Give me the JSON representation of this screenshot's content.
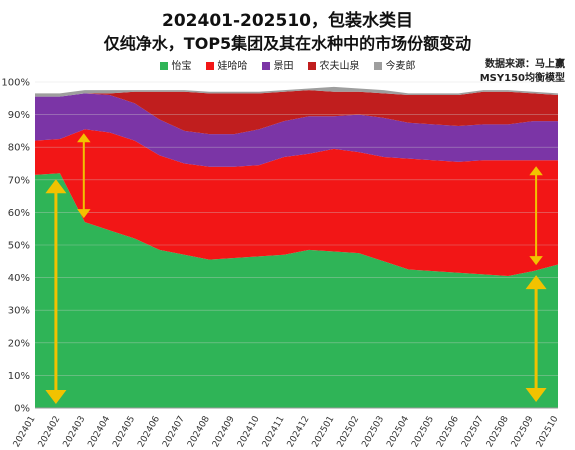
{
  "title": "202401-202510，包装水类目",
  "subtitle": "仅纯净水，TOP5集团及其在水种中的市场份额变动",
  "source_line1": "数据来源：马上赢",
  "source_line2": "MSY150均衡模型",
  "colors": {
    "yibao": "#2fb457",
    "wahaha": "#f21616",
    "jingtian": "#7b35a6",
    "nongfu": "#c01e1e",
    "jinmailang": "#9e9e9e",
    "arrow": "#f2c200"
  },
  "chart_data": {
    "type": "area",
    "stacked": true,
    "x": [
      "202401",
      "202402",
      "202403",
      "202404",
      "202405",
      "202406",
      "202407",
      "202408",
      "202409",
      "202410",
      "202411",
      "202412",
      "202501",
      "202502",
      "202503",
      "202504",
      "202505",
      "202506",
      "202507",
      "202508",
      "202509",
      "202510"
    ],
    "ylim": [
      0,
      100
    ],
    "yticks": [
      "0%",
      "10%",
      "20%",
      "30%",
      "40%",
      "50%",
      "60%",
      "70%",
      "80%",
      "90%",
      "100%"
    ],
    "legend_position": "top",
    "grid": true,
    "series": [
      {
        "name": "怡宝",
        "color_key": "yibao",
        "values": [
          71.5,
          72,
          57,
          54.5,
          52,
          48.5,
          47,
          45.5,
          46,
          46.5,
          47,
          48.5,
          48,
          47.5,
          45,
          42.5,
          42,
          41.5,
          41,
          40.5,
          42,
          44
        ]
      },
      {
        "name": "娃哈哈",
        "color_key": "wahaha",
        "values": [
          10.5,
          10.5,
          28.5,
          30,
          30,
          29,
          28,
          28.5,
          28,
          28,
          30,
          29.5,
          31.5,
          31,
          32,
          34,
          34,
          34,
          35,
          35.5,
          34,
          32
        ]
      },
      {
        "name": "景田",
        "color_key": "jingtian",
        "values": [
          13.5,
          13,
          11,
          11.5,
          11.5,
          11,
          10,
          10,
          10,
          11,
          11,
          11.5,
          10,
          11.5,
          12,
          11,
          11,
          11,
          11,
          11,
          12,
          12
        ]
      },
      {
        "name": "农夫山泉",
        "color_key": "nongfu",
        "values": [
          0,
          0,
          0,
          0.5,
          3.5,
          8.5,
          12,
          12.5,
          12.5,
          11,
          9,
          8,
          7.5,
          7,
          7.5,
          8.5,
          9,
          9.5,
          10,
          10,
          8.5,
          8
        ]
      },
      {
        "name": "今麦郎",
        "color_key": "jinmailang",
        "values": [
          1,
          1,
          1,
          1,
          0.5,
          0.5,
          0.5,
          0.5,
          0.5,
          0.5,
          0.5,
          0.5,
          1.5,
          1,
          1,
          0.5,
          0.5,
          0.5,
          0.5,
          0.5,
          0.5,
          0.5
        ]
      }
    ]
  }
}
